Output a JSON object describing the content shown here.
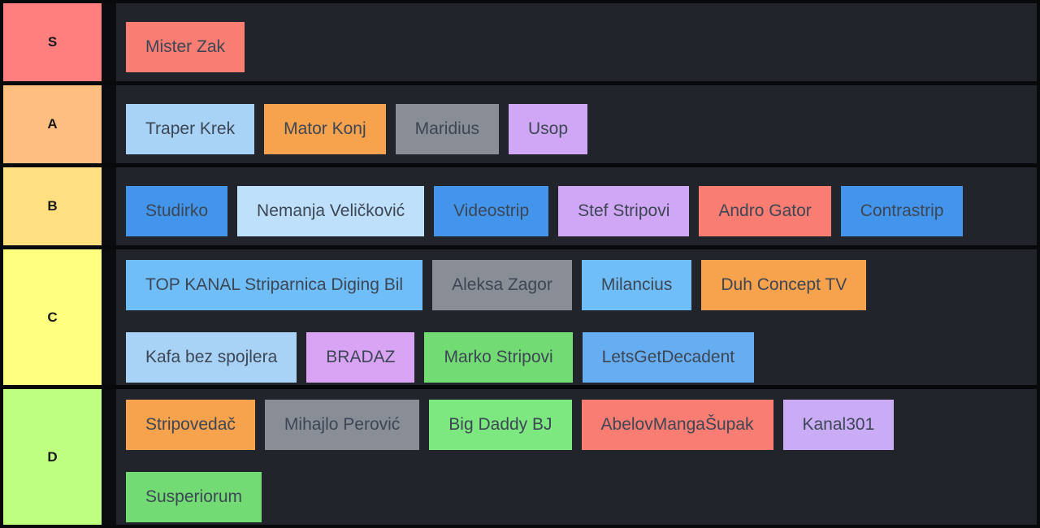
{
  "app": {
    "name": "tier-list-maker",
    "board_background": "#21242b",
    "frame_color": "#08090b",
    "item_text_color": "#3d4654"
  },
  "tiers": [
    {
      "label": "S",
      "color": "#FF7F7F",
      "lines": [
        [
          {
            "text": "Mister Zak",
            "color": "#F97D72"
          }
        ]
      ]
    },
    {
      "label": "A",
      "color": "#FFBF7F",
      "lines": [
        [
          {
            "text": "Traper Krek",
            "color": "#A9D3F6"
          },
          {
            "text": "Mator Konj",
            "color": "#F7A24D"
          },
          {
            "text": "Maridius",
            "color": "#888D96"
          },
          {
            "text": "Usop",
            "color": "#D0A7F4"
          }
        ]
      ]
    },
    {
      "label": "B",
      "color": "#FFDF7F",
      "lines": [
        [
          {
            "text": "Studirko",
            "color": "#4295EB"
          },
          {
            "text": "Nemanja Veličković",
            "color": "#BFE0FA"
          },
          {
            "text": "Videostrip",
            "color": "#4295EB"
          },
          {
            "text": "Stef Stripovi",
            "color": "#D0A7F4"
          },
          {
            "text": "Andro Gator",
            "color": "#F97D72"
          },
          {
            "text": "Contrastrip",
            "color": "#4295EB"
          }
        ]
      ]
    },
    {
      "label": "C",
      "color": "#FFFF7F",
      "lines": [
        [
          {
            "text": "TOP KANAL Striparnica Diging Bil",
            "color": "#70BEF7"
          },
          {
            "text": "Aleksa Zagor",
            "color": "#888D96"
          },
          {
            "text": "Milancius",
            "color": "#70BEF7"
          },
          {
            "text": "Duh Concept TV",
            "color": "#F7A24D"
          }
        ],
        [
          {
            "text": "Kafa bez spojlera",
            "color": "#A9D3F6"
          },
          {
            "text": "BRADAZ",
            "color": "#D9A4F4"
          },
          {
            "text": "Marko Stripovi",
            "color": "#72DB74"
          },
          {
            "text": "LetsGetDecadent",
            "color": "#66AEF1"
          }
        ]
      ]
    },
    {
      "label": "D",
      "color": "#BFFF7F",
      "lines": [
        [
          {
            "text": "Stripovedač",
            "color": "#F7A24D"
          },
          {
            "text": "Mihajlo Perović",
            "color": "#888D96"
          },
          {
            "text": "Big Daddy BJ",
            "color": "#7CE87F"
          },
          {
            "text": "AbelovMangaŠupak",
            "color": "#F97D72"
          },
          {
            "text": "Kanal301",
            "color": "#C9ACF5"
          }
        ],
        [
          {
            "text": "Susperiorum",
            "color": "#72DB74"
          }
        ]
      ]
    }
  ]
}
